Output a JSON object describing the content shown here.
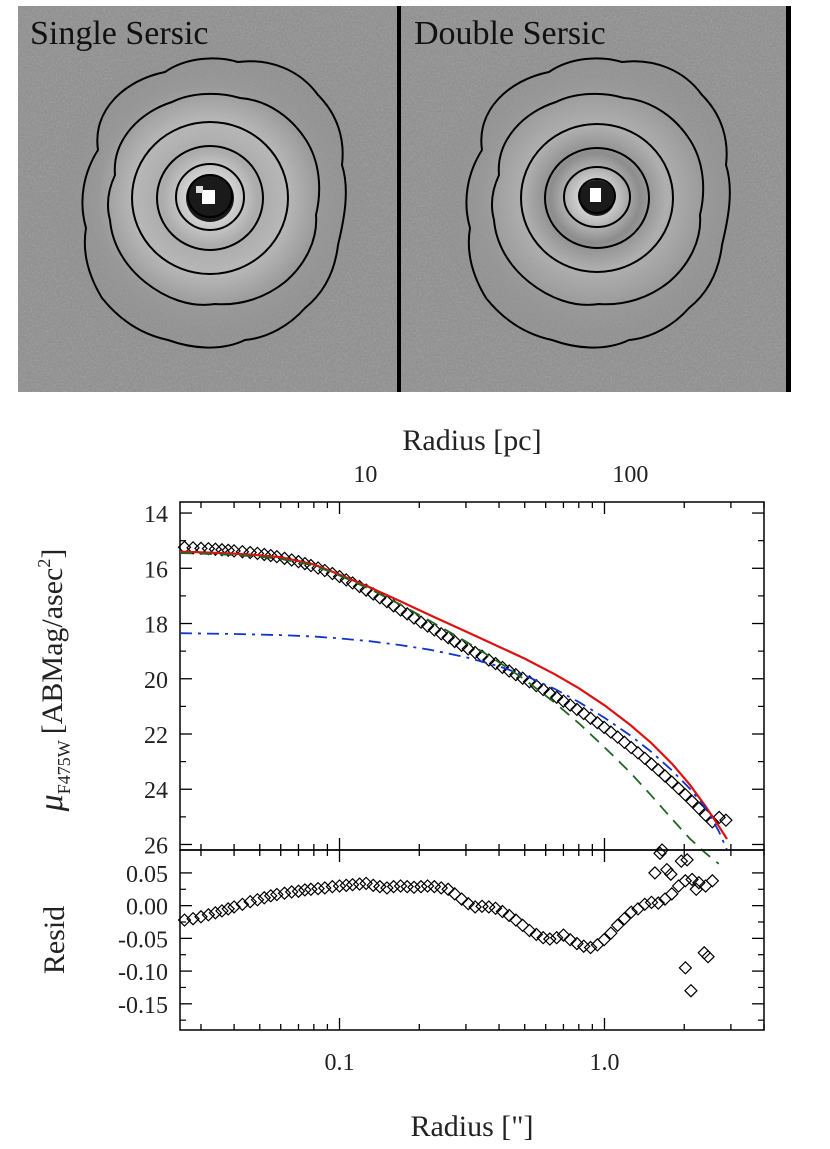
{
  "panels": {
    "left_label": "Single Sersic",
    "right_label": "Double Sersic"
  },
  "chart_data": [
    {
      "type": "line",
      "name": "surface-brightness-profile",
      "xscale": "log",
      "xlim": [
        0.025,
        4.0
      ],
      "ylim": [
        26.2,
        13.6
      ],
      "ylabel_symbol": "μ",
      "ylabel_sub": "F475W",
      "ylabel_units_main": "[ABMag/asec",
      "ylabel_units_sup": "2",
      "ylabel_units_end": "]",
      "yticks": [
        14,
        16,
        18,
        20,
        22,
        24,
        26
      ],
      "ytick_labels": [
        "14",
        "16",
        "18",
        "20",
        "22",
        "24",
        "26"
      ],
      "top_axis": {
        "title": "Radius [pc]",
        "ticks_arcsec": [
          0.1252,
          1.252
        ],
        "tick_labels": [
          "10",
          "100"
        ]
      },
      "series": [
        {
          "name": "data",
          "marker": "diamond",
          "color": "#000000",
          "x": [
            0.026,
            0.028,
            0.03,
            0.032,
            0.034,
            0.036,
            0.038,
            0.04,
            0.043,
            0.046,
            0.049,
            0.052,
            0.055,
            0.058,
            0.062,
            0.066,
            0.07,
            0.074,
            0.078,
            0.083,
            0.088,
            0.094,
            0.1,
            0.106,
            0.112,
            0.119,
            0.126,
            0.134,
            0.142,
            0.151,
            0.16,
            0.17,
            0.18,
            0.191,
            0.203,
            0.215,
            0.228,
            0.242,
            0.257,
            0.272,
            0.289,
            0.306,
            0.325,
            0.345,
            0.366,
            0.388,
            0.412,
            0.437,
            0.463,
            0.491,
            0.521,
            0.553,
            0.587,
            0.622,
            0.66,
            0.7,
            0.742,
            0.787,
            0.835,
            0.886,
            0.94,
            0.997,
            1.057,
            1.121,
            1.189,
            1.261,
            1.338,
            1.419,
            1.505,
            1.596,
            1.692,
            1.795,
            1.904,
            2.019,
            2.141,
            2.271,
            2.408,
            2.554,
            2.709,
            2.873
          ],
          "y": [
            15.24,
            15.26,
            15.28,
            15.29,
            15.31,
            15.33,
            15.35,
            15.37,
            15.4,
            15.43,
            15.46,
            15.5,
            15.54,
            15.58,
            15.64,
            15.7,
            15.76,
            15.83,
            15.9,
            15.99,
            16.08,
            16.19,
            16.3,
            16.42,
            16.53,
            16.66,
            16.79,
            16.93,
            17.07,
            17.21,
            17.36,
            17.51,
            17.65,
            17.8,
            17.95,
            18.09,
            18.23,
            18.37,
            18.51,
            18.65,
            18.79,
            18.92,
            19.05,
            19.18,
            19.32,
            19.45,
            19.59,
            19.72,
            19.85,
            19.98,
            20.11,
            20.25,
            20.39,
            20.53,
            20.67,
            20.81,
            20.95,
            21.11,
            21.26,
            21.43,
            21.59,
            21.76,
            21.93,
            22.11,
            22.3,
            22.49,
            22.68,
            22.88,
            23.09,
            23.3,
            23.52,
            23.74,
            23.97,
            24.2,
            24.44,
            24.69,
            24.94,
            25.18,
            25.02,
            25.12
          ]
        },
        {
          "name": "total-model",
          "style": "solid",
          "color": "#dd1111",
          "x": [
            0.025,
            0.03,
            0.04,
            0.05,
            0.06,
            0.08,
            0.1,
            0.13,
            0.17,
            0.22,
            0.3,
            0.4,
            0.5,
            0.65,
            0.8,
            1.0,
            1.25,
            1.5,
            1.8,
            2.1,
            2.4,
            2.7,
            2.9
          ],
          "y": [
            15.4,
            15.42,
            15.47,
            15.53,
            15.6,
            15.86,
            16.23,
            16.69,
            17.2,
            17.7,
            18.29,
            18.84,
            19.27,
            19.84,
            20.34,
            20.96,
            21.67,
            22.32,
            23.08,
            23.84,
            24.6,
            25.34,
            25.8
          ]
        },
        {
          "name": "inner-sersic",
          "style": "dashed",
          "color": "#226622",
          "x": [
            0.025,
            0.03,
            0.04,
            0.05,
            0.06,
            0.08,
            0.1,
            0.13,
            0.17,
            0.22,
            0.3,
            0.4,
            0.5,
            0.65,
            0.8,
            1.0,
            1.25,
            1.5,
            1.8,
            2.1,
            2.4,
            2.7
          ],
          "y": [
            15.45,
            15.47,
            15.52,
            15.58,
            15.66,
            15.9,
            16.26,
            16.75,
            17.32,
            17.91,
            18.65,
            19.4,
            20.03,
            20.87,
            21.61,
            22.48,
            23.39,
            24.22,
            25.08,
            25.79,
            26.3,
            26.7
          ]
        },
        {
          "name": "outer-sersic",
          "style": "dashdot",
          "color": "#1133cc",
          "x": [
            0.025,
            0.03,
            0.04,
            0.05,
            0.06,
            0.08,
            0.1,
            0.13,
            0.17,
            0.22,
            0.3,
            0.4,
            0.5,
            0.65,
            0.8,
            1.0,
            1.25,
            1.5,
            1.8,
            2.1,
            2.4,
            2.7,
            2.9
          ],
          "y": [
            18.35,
            18.36,
            18.38,
            18.4,
            18.42,
            18.47,
            18.54,
            18.64,
            18.78,
            18.95,
            19.22,
            19.55,
            19.88,
            20.37,
            20.84,
            21.41,
            22.05,
            22.64,
            23.32,
            23.98,
            24.66,
            25.52,
            26.2
          ]
        }
      ]
    },
    {
      "type": "scatter",
      "name": "residuals",
      "xscale": "log",
      "xlim": [
        0.025,
        4.0
      ],
      "ylim": [
        -0.19,
        0.085
      ],
      "xlabel": "Radius [\"]",
      "ylabel": "Resid",
      "xticks": [
        0.1,
        1.0
      ],
      "xtick_labels": [
        "0.1",
        "1.0"
      ],
      "yticks": [
        0.05,
        0.0,
        -0.05,
        -0.1,
        -0.15
      ],
      "ytick_labels": [
        "0.05",
        "0.00",
        "-0.05",
        "-0.10",
        "-0.15"
      ],
      "series": [
        {
          "name": "residuals",
          "marker": "diamond",
          "color": "#000000",
          "x": [
            0.026,
            0.028,
            0.03,
            0.032,
            0.034,
            0.036,
            0.038,
            0.04,
            0.043,
            0.046,
            0.049,
            0.052,
            0.055,
            0.058,
            0.062,
            0.066,
            0.07,
            0.074,
            0.078,
            0.083,
            0.088,
            0.094,
            0.1,
            0.106,
            0.112,
            0.119,
            0.126,
            0.134,
            0.142,
            0.151,
            0.16,
            0.17,
            0.18,
            0.191,
            0.203,
            0.215,
            0.228,
            0.242,
            0.257,
            0.272,
            0.289,
            0.306,
            0.325,
            0.345,
            0.366,
            0.388,
            0.412,
            0.437,
            0.463,
            0.491,
            0.521,
            0.553,
            0.587,
            0.622,
            0.66,
            0.7,
            0.742,
            0.787,
            0.835,
            0.886,
            0.94,
            0.997,
            1.057,
            1.121,
            1.189,
            1.261,
            1.338,
            1.419,
            1.505,
            1.596,
            1.692,
            1.795,
            1.904,
            2.019,
            2.141,
            2.271,
            2.408,
            2.554,
            1.55,
            1.62,
            1.65,
            1.72,
            1.78,
            1.95,
            2.05,
            2.22,
            2.38,
            2.46,
            2.02,
            2.12
          ],
          "y": [
            -0.022,
            -0.02,
            -0.017,
            -0.014,
            -0.011,
            -0.008,
            -0.005,
            -0.002,
            0.002,
            0.006,
            0.009,
            0.012,
            0.015,
            0.017,
            0.019,
            0.021,
            0.022,
            0.024,
            0.025,
            0.026,
            0.027,
            0.029,
            0.03,
            0.031,
            0.032,
            0.033,
            0.034,
            0.031,
            0.029,
            0.027,
            0.029,
            0.03,
            0.029,
            0.028,
            0.029,
            0.03,
            0.029,
            0.027,
            0.025,
            0.018,
            0.01,
            0.003,
            -0.002,
            -0.001,
            -0.002,
            -0.004,
            -0.009,
            -0.015,
            -0.022,
            -0.03,
            -0.038,
            -0.044,
            -0.049,
            -0.051,
            -0.049,
            -0.045,
            -0.052,
            -0.058,
            -0.062,
            -0.064,
            -0.06,
            -0.052,
            -0.042,
            -0.03,
            -0.02,
            -0.01,
            -0.005,
            0.002,
            0.005,
            0.004,
            0.01,
            0.018,
            0.03,
            0.038,
            0.04,
            0.035,
            0.03,
            0.038,
            0.05,
            0.08,
            0.085,
            0.055,
            0.048,
            0.068,
            0.07,
            0.025,
            -0.072,
            -0.078,
            -0.095,
            -0.13
          ]
        }
      ]
    }
  ]
}
